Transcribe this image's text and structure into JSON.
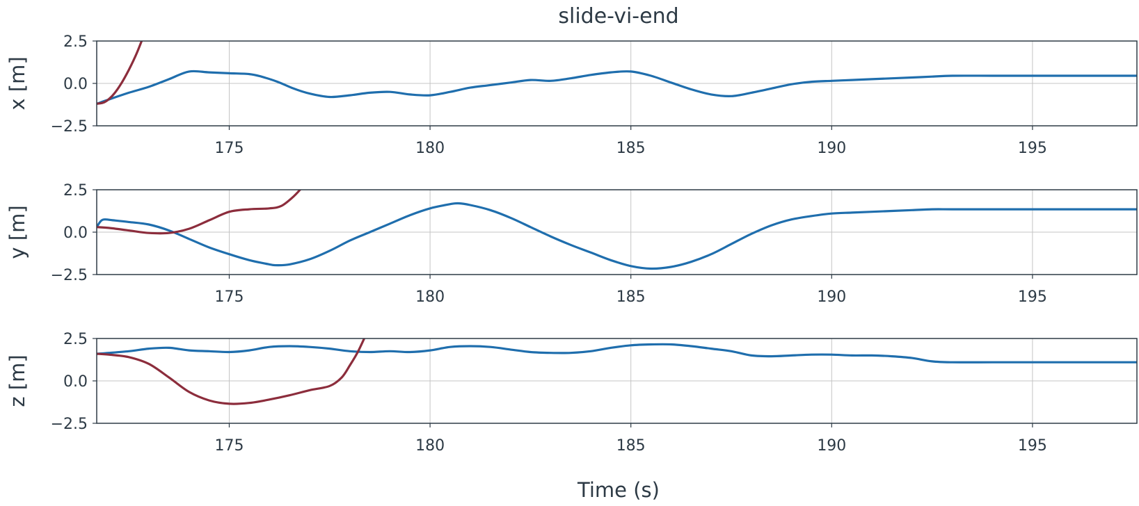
{
  "chart_data": {
    "type": "line",
    "title": "slide-vi-end",
    "xlabel": "Time (s)",
    "xlim": [
      171.7,
      197.6
    ],
    "xticks": [
      175,
      180,
      185,
      190,
      195
    ],
    "xtick_labels": [
      "175",
      "180",
      "185",
      "190",
      "195"
    ],
    "grid": true,
    "colors": {
      "blue": "#1f6ead",
      "red": "#8c2d3c",
      "axis": "#2d3a45",
      "grid": "#c4c4c4"
    },
    "panels": [
      {
        "ylabel": "x [m]",
        "ylim": [
          -2.5,
          2.5
        ],
        "yticks": [
          -2.5,
          0.0,
          2.5
        ],
        "ytick_labels": [
          "−2.5",
          "0.0",
          "2.5"
        ],
        "series": [
          {
            "color": "#1f6ead",
            "x": [
              171.7,
              172.0,
              172.5,
              173.0,
              173.5,
              174.0,
              174.5,
              175.0,
              175.5,
              175.8,
              176.2,
              176.6,
              177.0,
              177.5,
              178.0,
              178.5,
              179.0,
              179.5,
              180.0,
              180.5,
              181.0,
              181.5,
              182.0,
              182.5,
              183.0,
              183.5,
              184.0,
              184.5,
              185.0,
              185.5,
              186.0,
              186.5,
              187.0,
              187.5,
              188.0,
              188.5,
              189.0,
              189.5,
              190.0,
              190.5,
              191.0,
              191.5,
              192.0,
              192.5,
              193.0,
              194.0,
              195.0,
              196.0,
              197.0,
              197.6
            ],
            "y": [
              -1.2,
              -0.95,
              -0.55,
              -0.2,
              0.25,
              0.7,
              0.65,
              0.6,
              0.55,
              0.4,
              0.1,
              -0.3,
              -0.6,
              -0.8,
              -0.7,
              -0.55,
              -0.5,
              -0.65,
              -0.7,
              -0.5,
              -0.25,
              -0.1,
              0.05,
              0.2,
              0.15,
              0.3,
              0.5,
              0.65,
              0.7,
              0.45,
              0.05,
              -0.35,
              -0.65,
              -0.75,
              -0.55,
              -0.3,
              -0.05,
              0.1,
              0.15,
              0.2,
              0.25,
              0.3,
              0.35,
              0.4,
              0.45,
              0.45,
              0.45,
              0.45,
              0.45,
              0.45
            ]
          },
          {
            "color": "#8c2d3c",
            "x": [
              171.7,
              171.9,
              172.1,
              172.3,
              172.5,
              172.7,
              172.9
            ],
            "y": [
              -1.2,
              -1.1,
              -0.7,
              -0.05,
              0.8,
              1.8,
              3.0
            ]
          }
        ]
      },
      {
        "ylabel": "y [m]",
        "ylim": [
          -2.5,
          2.5
        ],
        "yticks": [
          -2.5,
          0.0,
          2.5
        ],
        "ytick_labels": [
          "−2.5",
          "0.0",
          "2.5"
        ],
        "series": [
          {
            "color": "#1f6ead",
            "x": [
              171.7,
              171.8,
              171.9,
              172.1,
              172.5,
              173.0,
              173.5,
              174.0,
              174.5,
              175.0,
              175.5,
              176.0,
              176.2,
              176.5,
              177.0,
              177.5,
              178.0,
              178.5,
              179.0,
              179.5,
              180.0,
              180.5,
              180.7,
              181.0,
              181.5,
              182.0,
              182.5,
              183.0,
              183.5,
              184.0,
              184.5,
              185.0,
              185.5,
              186.0,
              186.5,
              187.0,
              187.5,
              188.0,
              188.5,
              189.0,
              189.5,
              190.0,
              190.5,
              191.0,
              191.5,
              192.0,
              192.5,
              193.0,
              194.0,
              195.0,
              196.0,
              197.0,
              197.6
            ],
            "y": [
              0.3,
              0.65,
              0.75,
              0.7,
              0.6,
              0.45,
              0.1,
              -0.4,
              -0.9,
              -1.3,
              -1.65,
              -1.9,
              -1.95,
              -1.9,
              -1.6,
              -1.1,
              -0.5,
              0.0,
              0.5,
              1.0,
              1.4,
              1.65,
              1.7,
              1.6,
              1.3,
              0.85,
              0.3,
              -0.25,
              -0.75,
              -1.2,
              -1.65,
              -2.0,
              -2.15,
              -2.05,
              -1.75,
              -1.3,
              -0.7,
              -0.1,
              0.4,
              0.75,
              0.95,
              1.1,
              1.15,
              1.2,
              1.25,
              1.3,
              1.35,
              1.35,
              1.35,
              1.35,
              1.35,
              1.35,
              1.35
            ]
          },
          {
            "color": "#8c2d3c",
            "x": [
              171.7,
              172.0,
              172.5,
              173.0,
              173.5,
              174.0,
              174.5,
              175.0,
              175.5,
              176.0,
              176.3,
              176.6,
              176.8
            ],
            "y": [
              0.3,
              0.25,
              0.1,
              -0.05,
              -0.05,
              0.2,
              0.7,
              1.2,
              1.35,
              1.4,
              1.55,
              2.1,
              2.6
            ]
          }
        ]
      },
      {
        "ylabel": "z [m]",
        "ylim": [
          -2.5,
          2.5
        ],
        "yticks": [
          -2.5,
          0.0,
          2.5
        ],
        "ytick_labels": [
          "−2.5",
          "0.0",
          "2.5"
        ],
        "series": [
          {
            "color": "#1f6ead",
            "x": [
              171.7,
              172.0,
              172.5,
              173.0,
              173.5,
              174.0,
              174.5,
              175.0,
              175.5,
              176.0,
              176.5,
              177.0,
              177.5,
              178.0,
              178.5,
              179.0,
              179.5,
              180.0,
              180.5,
              181.0,
              181.5,
              182.0,
              182.5,
              183.0,
              183.5,
              184.0,
              184.5,
              185.0,
              185.5,
              186.0,
              186.5,
              187.0,
              187.5,
              188.0,
              188.5,
              189.0,
              189.5,
              190.0,
              190.5,
              191.0,
              191.5,
              192.0,
              192.5,
              193.0,
              194.0,
              195.0,
              196.0,
              197.0,
              197.6
            ],
            "y": [
              1.6,
              1.65,
              1.75,
              1.9,
              1.95,
              1.8,
              1.75,
              1.7,
              1.8,
              2.0,
              2.05,
              2.0,
              1.9,
              1.75,
              1.7,
              1.75,
              1.7,
              1.8,
              2.0,
              2.05,
              2.0,
              1.85,
              1.7,
              1.65,
              1.65,
              1.75,
              1.95,
              2.1,
              2.15,
              2.15,
              2.05,
              1.9,
              1.75,
              1.5,
              1.45,
              1.5,
              1.55,
              1.55,
              1.5,
              1.5,
              1.45,
              1.35,
              1.15,
              1.1,
              1.1,
              1.1,
              1.1,
              1.1,
              1.1
            ]
          },
          {
            "color": "#8c2d3c",
            "x": [
              171.7,
              172.0,
              172.5,
              173.0,
              173.5,
              174.0,
              174.5,
              175.0,
              175.5,
              176.0,
              176.5,
              177.0,
              177.5,
              177.8,
              178.0,
              178.2,
              178.4
            ],
            "y": [
              1.6,
              1.55,
              1.4,
              1.0,
              0.2,
              -0.65,
              -1.15,
              -1.35,
              -1.3,
              -1.1,
              -0.85,
              -0.55,
              -0.3,
              0.2,
              0.9,
              1.7,
              2.7
            ]
          }
        ]
      }
    ]
  }
}
